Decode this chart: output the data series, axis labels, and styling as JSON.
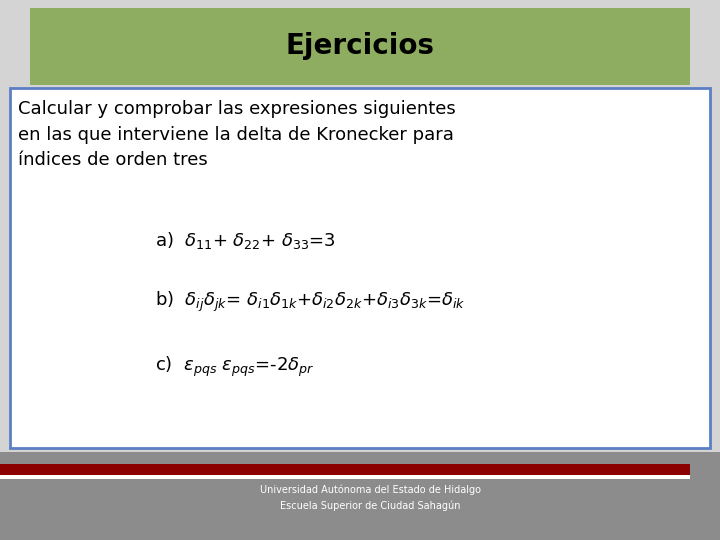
{
  "title": "Ejercicios",
  "title_bg_color": "#8fad60",
  "title_text_color": "#000000",
  "slide_bg_color": "#d4d4d4",
  "content_bg_color": "#ffffff",
  "content_border_color": "#5b7fc4",
  "footer_bg_color": "#8c8c8c",
  "footer_line_color1": "#8b0000",
  "footer_line_color2": "#ffffff",
  "footer_text1": "Universidad Autónoma del Estado de Hidalgo",
  "footer_text2": "Escuela Superior de Ciudad Sahagún",
  "font_size_title": 20,
  "font_size_intro": 13,
  "font_size_items": 13
}
